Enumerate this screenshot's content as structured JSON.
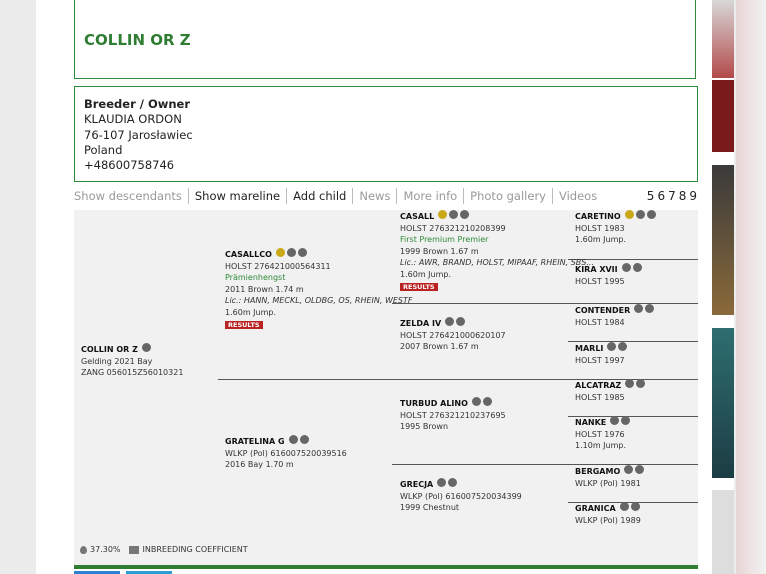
{
  "header": {
    "title": "COLLIN OR Z"
  },
  "breeder": {
    "heading": "Breeder / Owner",
    "lines": [
      "KLAUDIA ORDON",
      "76-107 Jarosławiec",
      "Poland",
      "+48600758746"
    ]
  },
  "nav": {
    "links": [
      "Show descendants",
      "Show mareline",
      "Add child",
      "News",
      "More info",
      "Photo gallery",
      "Videos"
    ],
    "pages": [
      5,
      6,
      7,
      8,
      9
    ]
  },
  "pedigree": {
    "nodes": [
      {
        "name": "COLLIN OR Z",
        "registration": "Gelding 2021 Bay",
        "details": "ZANG 056015Z56010321"
      },
      {
        "name": "CASALLCO",
        "registration": "HOLST 276421000564311",
        "title": "Prämienhengst",
        "details": "2011 Brown 1.74 m",
        "licenses": "Lic.: HANN, MECKL, OLDBG, OS, RHEIN, WESTF",
        "jump": "1.60m Jump.",
        "badge": "RESULTS"
      },
      {
        "name": "GRATELINA G",
        "registration": "WLKP (Pol) 616007520039516",
        "details": "2016 Bay 1.70 m"
      },
      {
        "name": "CASALL",
        "registration": "HOLST 276321210208399",
        "title": "First Premium Premier",
        "details": "1999 Brown 1.67 m",
        "licenses": "Lic.: AWR, BRAND, HOLST, MIPAAF, RHEIN, SBS...",
        "jump": "1.60m Jump.",
        "badge": "RESULTS"
      },
      {
        "name": "ZELDA IV",
        "registration": "HOLST 276421000620107",
        "details": "2007 Brown 1.67 m"
      },
      {
        "name": "TURBUD ALINO",
        "registration": "HOLST 276321210237695",
        "details": "1995 Brown"
      },
      {
        "name": "GRECJA",
        "registration": "WLKP (Pol) 616007520034399",
        "details": "1999 Chestnut"
      },
      {
        "name": "CARETINO",
        "registration": "HOLST 1983",
        "jump": "1.60m Jump."
      },
      {
        "name": "KIRA XVII",
        "registration": "HOLST 1995"
      },
      {
        "name": "CONTENDER",
        "registration": "HOLST 1984"
      },
      {
        "name": "MARLI",
        "registration": "HOLST 1997"
      },
      {
        "name": "ALCATRAZ",
        "registration": "HOLST 1985"
      },
      {
        "name": "NANKE",
        "registration": "HOLST 1976",
        "jump": "1.10m Jump."
      },
      {
        "name": "BERGAMO",
        "registration": "WLKP (Pol) 1981"
      },
      {
        "name": "GRANICA",
        "registration": "WLKP (Pol) 1989"
      }
    ]
  },
  "inbreeding": {
    "value": "37.30%",
    "label": "INBREEDING COEFFICIENT"
  }
}
